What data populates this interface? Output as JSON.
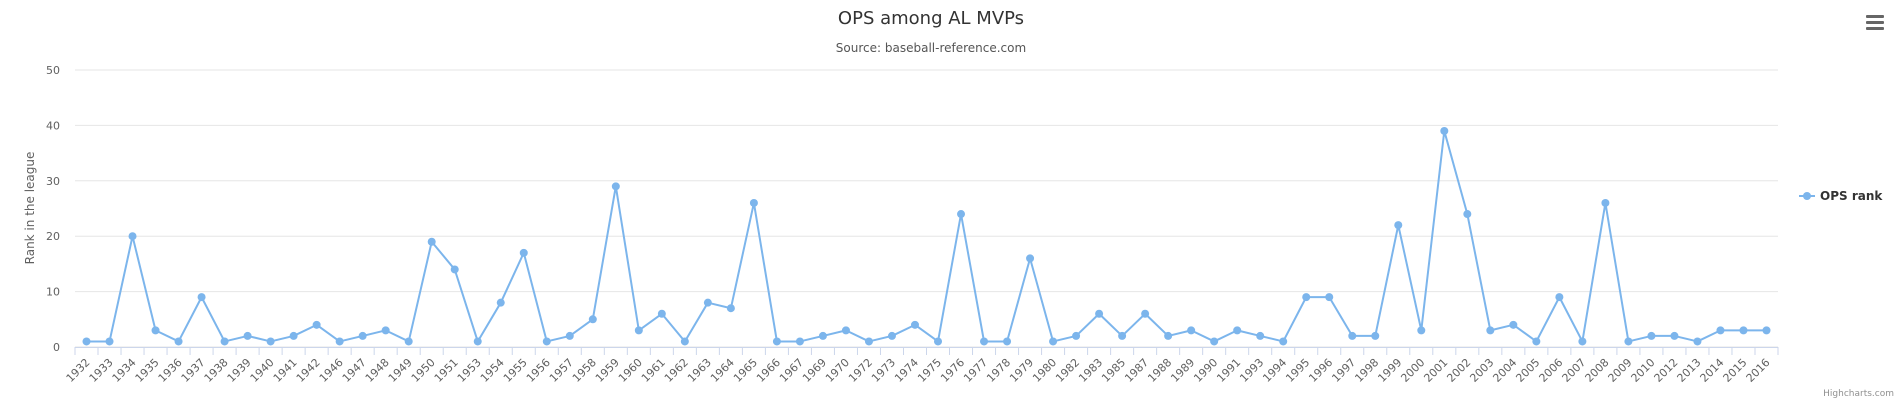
{
  "chart_data": {
    "type": "line",
    "title": "OPS among AL MVPs",
    "subtitle": "Source: baseball-reference.com",
    "ylabel": "Rank in the league",
    "xlabel": "",
    "ylim": [
      0,
      50
    ],
    "yticks": [
      0,
      10,
      20,
      30,
      40,
      50
    ],
    "grid": true,
    "legend_position": "right",
    "categories": [
      "1932",
      "1933",
      "1934",
      "1935",
      "1936",
      "1937",
      "1938",
      "1939",
      "1940",
      "1941",
      "1942",
      "1946",
      "1947",
      "1948",
      "1949",
      "1950",
      "1951",
      "1953",
      "1954",
      "1955",
      "1956",
      "1957",
      "1958",
      "1959",
      "1960",
      "1961",
      "1962",
      "1963",
      "1964",
      "1965",
      "1966",
      "1967",
      "1969",
      "1970",
      "1972",
      "1973",
      "1974",
      "1975",
      "1976",
      "1977",
      "1978",
      "1979",
      "1980",
      "1982",
      "1983",
      "1985",
      "1987",
      "1988",
      "1989",
      "1990",
      "1991",
      "1993",
      "1994",
      "1995",
      "1996",
      "1997",
      "1998",
      "1999",
      "2000",
      "2001",
      "2002",
      "2003",
      "2004",
      "2005",
      "2006",
      "2007",
      "2008",
      "2009",
      "2010",
      "2012",
      "2013",
      "2014",
      "2015",
      "2016"
    ],
    "series": [
      {
        "name": "OPS rank",
        "color": "#7cb5ec",
        "values": [
          1,
          1,
          20,
          3,
          1,
          9,
          1,
          2,
          1,
          2,
          4,
          1,
          2,
          3,
          1,
          19,
          14,
          1,
          8,
          17,
          1,
          2,
          5,
          29,
          3,
          6,
          1,
          8,
          7,
          26,
          1,
          1,
          2,
          3,
          1,
          2,
          4,
          1,
          24,
          1,
          1,
          16,
          1,
          2,
          6,
          2,
          6,
          2,
          3,
          1,
          3,
          2,
          1,
          9,
          9,
          2,
          2,
          22,
          3,
          39,
          24,
          3,
          4,
          1,
          9,
          1,
          26,
          1,
          2,
          2,
          1,
          3,
          3,
          3
        ]
      }
    ]
  },
  "menu": {
    "icon": "hamburger-menu-icon"
  },
  "credits": "Highcharts.com"
}
